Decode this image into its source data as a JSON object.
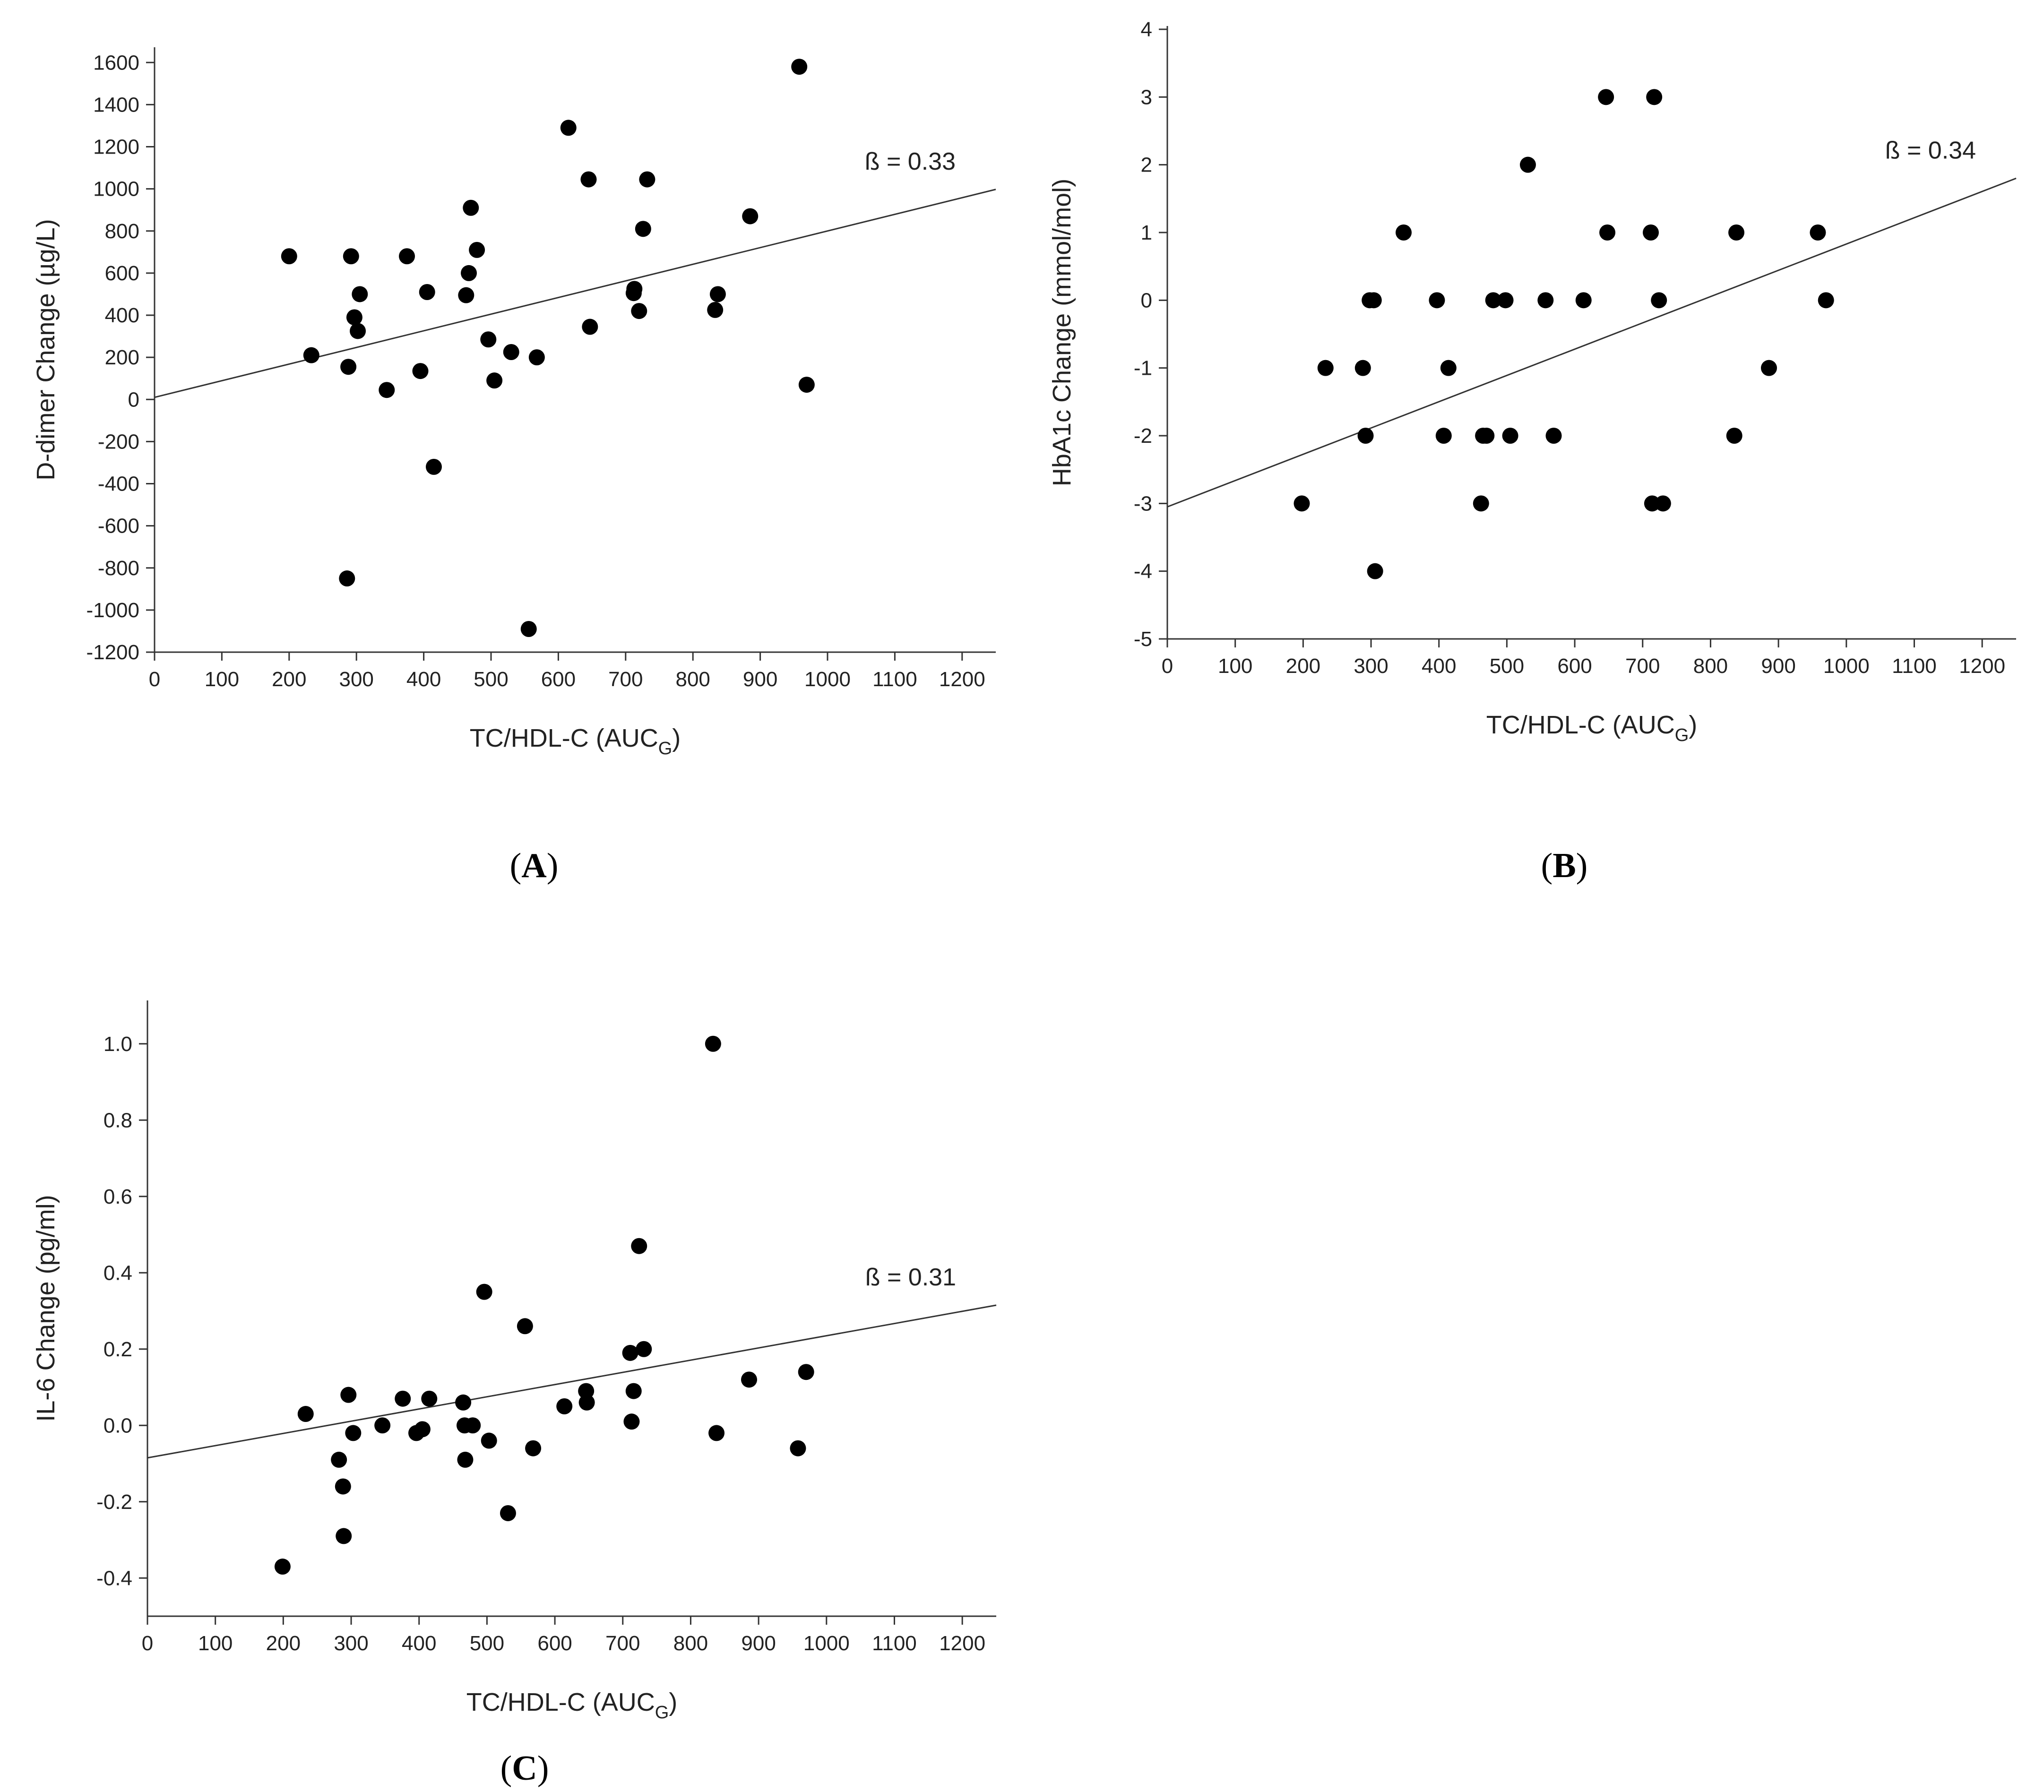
{
  "figure": {
    "panels": [
      {
        "id": "A",
        "caption_open": "(",
        "caption_letter": "A",
        "caption_close": ")"
      },
      {
        "id": "B",
        "caption_open": "(",
        "caption_letter": "B",
        "caption_close": ")"
      },
      {
        "id": "C",
        "caption_open": "(",
        "caption_letter": "C",
        "caption_close": ")"
      }
    ]
  },
  "chart_data": [
    {
      "type": "scatter",
      "panel": "A",
      "title": "",
      "xlabel_main": "TC/HDL-C (AUC",
      "xlabel_sub": "G",
      "xlabel_close": ")",
      "ylabel": "D-dimer Change (µg/L)",
      "xlim": [
        0,
        1250
      ],
      "ylim": [
        -1200,
        1650
      ],
      "xticks": [
        0,
        100,
        200,
        300,
        400,
        500,
        600,
        700,
        800,
        900,
        1000,
        1100,
        1200
      ],
      "yticks": [
        -1200,
        -1000,
        -800,
        -600,
        -400,
        -200,
        0,
        200,
        400,
        600,
        800,
        1000,
        1200,
        1400,
        1600
      ],
      "grid": false,
      "regression": {
        "label": "ß = 0.33",
        "intercept": 10,
        "slope": 0.79
      },
      "label_position": "upper-right",
      "points": [
        [
          200,
          680
        ],
        [
          233,
          210
        ],
        [
          286,
          -850
        ],
        [
          288,
          155
        ],
        [
          292,
          680
        ],
        [
          297,
          390
        ],
        [
          302,
          325
        ],
        [
          305,
          500
        ],
        [
          345,
          45
        ],
        [
          375,
          680
        ],
        [
          395,
          135
        ],
        [
          405,
          510
        ],
        [
          415,
          -320
        ],
        [
          463,
          495
        ],
        [
          467,
          600
        ],
        [
          470,
          910
        ],
        [
          479,
          710
        ],
        [
          496,
          285
        ],
        [
          505,
          90
        ],
        [
          530,
          225
        ],
        [
          556,
          -1090
        ],
        [
          568,
          200
        ],
        [
          615,
          1290
        ],
        [
          645,
          1045
        ],
        [
          647,
          345
        ],
        [
          712,
          505
        ],
        [
          713,
          525
        ],
        [
          720,
          420
        ],
        [
          726,
          810
        ],
        [
          732,
          1045
        ],
        [
          833,
          425
        ],
        [
          837,
          500
        ],
        [
          885,
          870
        ],
        [
          958,
          1580
        ],
        [
          969,
          70
        ]
      ]
    },
    {
      "type": "scatter",
      "panel": "B",
      "title": "",
      "xlabel_main": "TC/HDL-C (AUC",
      "xlabel_sub": "G",
      "xlabel_close": ")",
      "ylabel": "HbA1c Change (mmol/mol)",
      "xlim": [
        0,
        1250
      ],
      "ylim": [
        -5,
        4
      ],
      "xticks": [
        0,
        100,
        200,
        300,
        400,
        500,
        600,
        700,
        800,
        900,
        1000,
        1100,
        1200
      ],
      "yticks": [
        -5,
        -4,
        -3,
        -2,
        -1,
        0,
        1,
        2,
        3,
        4
      ],
      "grid": false,
      "regression": {
        "label": "ß = 0.34",
        "intercept": -3.05,
        "slope": 0.00388
      },
      "label_position": "upper-right",
      "points": [
        [
          198,
          -3
        ],
        [
          233,
          -1
        ],
        [
          288,
          -1
        ],
        [
          292,
          -2
        ],
        [
          298,
          0
        ],
        [
          304,
          0
        ],
        [
          306,
          -4
        ],
        [
          348,
          1
        ],
        [
          397,
          0
        ],
        [
          407,
          -2
        ],
        [
          414,
          -1
        ],
        [
          462,
          -3
        ],
        [
          465,
          -2
        ],
        [
          470,
          -2
        ],
        [
          480,
          0
        ],
        [
          498,
          0
        ],
        [
          505,
          -2
        ],
        [
          531,
          2
        ],
        [
          557,
          0
        ],
        [
          569,
          -2
        ],
        [
          613,
          0
        ],
        [
          646,
          3
        ],
        [
          648,
          1
        ],
        [
          712,
          1
        ],
        [
          714,
          -3
        ],
        [
          717,
          3
        ],
        [
          724,
          0
        ],
        [
          730,
          -3
        ],
        [
          835,
          -2
        ],
        [
          838,
          1
        ],
        [
          886,
          -1
        ],
        [
          958,
          1
        ],
        [
          970,
          0
        ]
      ]
    },
    {
      "type": "scatter",
      "panel": "C",
      "title": "",
      "xlabel_main": "TC/HDL-C (AUC",
      "xlabel_sub": "G",
      "xlabel_close": ")",
      "ylabel": "IL-6 Change (pg/ml)",
      "xlim": [
        0,
        1250
      ],
      "ylim": [
        -0.5,
        1.1
      ],
      "xticks": [
        0,
        100,
        200,
        300,
        400,
        500,
        600,
        700,
        800,
        900,
        1000,
        1100,
        1200
      ],
      "yticks": [
        -0.4,
        -0.2,
        0.0,
        0.2,
        0.4,
        0.6,
        0.8,
        1.0
      ],
      "ytick_labels": [
        "-0.4",
        "-0.2",
        "0.0",
        "0.2",
        "0.4",
        "0.6",
        "0.8",
        "1.0"
      ],
      "grid": false,
      "regression": {
        "label": "ß = 0.31",
        "intercept": -0.085,
        "slope": 0.00032
      },
      "label_position": "upper-right",
      "points": [
        [
          199,
          -0.37
        ],
        [
          233,
          0.03
        ],
        [
          282,
          -0.09
        ],
        [
          288,
          -0.16
        ],
        [
          289,
          -0.29
        ],
        [
          296,
          0.08
        ],
        [
          303,
          -0.02
        ],
        [
          346,
          0.0
        ],
        [
          376,
          0.07
        ],
        [
          396,
          -0.02
        ],
        [
          405,
          -0.01
        ],
        [
          415,
          0.07
        ],
        [
          465,
          0.06
        ],
        [
          467,
          0.0
        ],
        [
          468,
          -0.09
        ],
        [
          479,
          0.0
        ],
        [
          496,
          0.35
        ],
        [
          503,
          -0.04
        ],
        [
          531,
          -0.23
        ],
        [
          556,
          0.26
        ],
        [
          568,
          -0.06
        ],
        [
          614,
          0.05
        ],
        [
          646,
          0.09
        ],
        [
          647,
          0.06
        ],
        [
          711,
          0.19
        ],
        [
          713,
          0.01
        ],
        [
          716,
          0.09
        ],
        [
          724,
          0.47
        ],
        [
          731,
          0.2
        ],
        [
          833,
          1.0
        ],
        [
          838,
          -0.02
        ],
        [
          886,
          0.12
        ],
        [
          958,
          -0.06
        ],
        [
          970,
          0.14
        ]
      ]
    }
  ]
}
